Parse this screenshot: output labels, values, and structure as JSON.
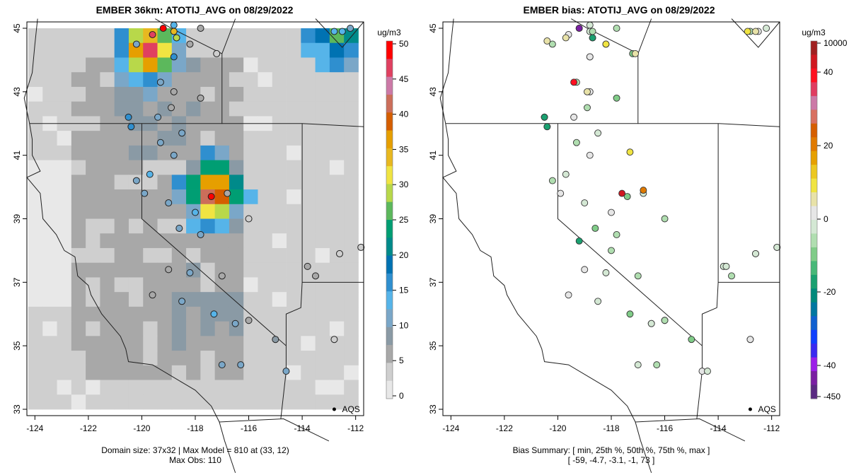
{
  "left_panel": {
    "title": "EMBER 36km: ATOTIJ_AVG on 08/29/2022",
    "caption_line1": "Domain size: 37x32 | Max Model = 810 at (33, 12)",
    "caption_line2": "Max Obs: 110",
    "marker_label": "AQS",
    "colorbar": {
      "unit": "ug/m3",
      "ticks": [
        "0",
        "5",
        "10",
        "15",
        "20",
        "25",
        "30",
        "35",
        "40",
        "45",
        "50"
      ],
      "stops": [
        "#e8e8e8",
        "#cfcfcf",
        "#a8a8a8",
        "#8a9aa5",
        "#7aa7c8",
        "#56b4e9",
        "#2f8fcf",
        "#0072b2",
        "#008a8a",
        "#009e73",
        "#5cb85c",
        "#b8d84a",
        "#f0e442",
        "#e8b820",
        "#e69f00",
        "#d55e00",
        "#cc6e5a",
        "#cc79a7",
        "#e04060",
        "#ff0000"
      ]
    }
  },
  "right_panel": {
    "title": "EMBER bias: ATOTIJ_AVG on 08/29/2022",
    "caption_line1": "Bias Summary: [ min, 25th %, 50th %, 75th %, max ]",
    "caption_line2": "[ -59,   -4.7,   -3.1,   -1,   73 ]",
    "marker_label": "AQS",
    "colorbar": {
      "unit": "ug/m3",
      "ticks": [
        "10000",
        "40",
        "20",
        "0",
        "-20",
        "-40",
        "-450"
      ],
      "stops": [
        "#5a2a82",
        "#7a1fa2",
        "#9b1fe8",
        "#3a2af0",
        "#1040ff",
        "#1060d0",
        "#0077a0",
        "#00897b",
        "#1aa070",
        "#48b878",
        "#80cc88",
        "#b0deb0",
        "#d4e8d4",
        "#e6e6e6",
        "#e8e2a8",
        "#f0e442",
        "#ecc820",
        "#e6a000",
        "#e07a00",
        "#d55e00",
        "#d87060",
        "#cc79a7",
        "#e03c60",
        "#ff1020",
        "#d01820",
        "#a02020"
      ]
    }
  },
  "map": {
    "x_ticks": [
      "-124",
      "-122",
      "-120",
      "-118",
      "-116",
      "-114",
      "-112"
    ],
    "y_ticks": [
      "33",
      "35",
      "37",
      "39",
      "41",
      "43",
      "45"
    ],
    "xlim": [
      -124.3,
      -111.7
    ],
    "ylim": [
      32.8,
      45.2
    ]
  },
  "chart_data": {
    "type": "heatmap",
    "title_left": "EMBER 36km: ATOTIJ_AVG on 08/29/2022",
    "title_right": "EMBER bias: ATOTIJ_AVG on 08/29/2022",
    "units": "ug/m3",
    "model_max": 810,
    "model_max_cell": [
      33,
      12
    ],
    "domain_size": "37x32",
    "obs_max": 110,
    "bias_summary": {
      "min": -59,
      "p25": -4.7,
      "p50": -3.1,
      "p75": -1,
      "max": 73
    },
    "hotspots": [
      {
        "lon": -119.8,
        "lat": 44.3,
        "value": 50
      },
      {
        "lon": -117.3,
        "lat": 39.8,
        "value": 50
      },
      {
        "lon": -112.6,
        "lat": 44.9,
        "value": 30
      }
    ],
    "obs_sites_left": [
      {
        "lon": -119.2,
        "lat": 45.0,
        "v": 50
      },
      {
        "lon": -118.8,
        "lat": 45.1,
        "v": 12
      },
      {
        "lon": -117.8,
        "lat": 45.0,
        "v": 4
      },
      {
        "lon": -119.6,
        "lat": 44.8,
        "v": 48
      },
      {
        "lon": -118.8,
        "lat": 44.9,
        "v": 35
      },
      {
        "lon": -118.7,
        "lat": 44.7,
        "v": 28
      },
      {
        "lon": -118.8,
        "lat": 44.1,
        "v": 16
      },
      {
        "lon": -120.2,
        "lat": 44.5,
        "v": 10
      },
      {
        "lon": -117.2,
        "lat": 44.2,
        "v": 3
      },
      {
        "lon": -118.2,
        "lat": 44.5,
        "v": 4
      },
      {
        "lon": -112.8,
        "lat": 44.9,
        "v": 14
      },
      {
        "lon": -112.5,
        "lat": 44.9,
        "v": 12
      },
      {
        "lon": -112.2,
        "lat": 45.0,
        "v": 10
      },
      {
        "lon": -119.3,
        "lat": 43.3,
        "v": 10
      },
      {
        "lon": -118.8,
        "lat": 43.0,
        "v": 6
      },
      {
        "lon": -120.5,
        "lat": 42.2,
        "v": 17
      },
      {
        "lon": -120.4,
        "lat": 41.9,
        "v": 16
      },
      {
        "lon": -119.4,
        "lat": 42.2,
        "v": 10
      },
      {
        "lon": -118.9,
        "lat": 42.5,
        "v": 6
      },
      {
        "lon": -117.8,
        "lat": 42.8,
        "v": 5
      },
      {
        "lon": -118.5,
        "lat": 41.7,
        "v": 10
      },
      {
        "lon": -119.3,
        "lat": 41.4,
        "v": 10
      },
      {
        "lon": -118.8,
        "lat": 41.0,
        "v": 10
      },
      {
        "lon": -119.7,
        "lat": 40.4,
        "v": 12
      },
      {
        "lon": -120.2,
        "lat": 40.2,
        "v": 10
      },
      {
        "lon": -119.9,
        "lat": 39.8,
        "v": 11
      },
      {
        "lon": -119.0,
        "lat": 39.5,
        "v": 10
      },
      {
        "lon": -118.6,
        "lat": 38.7,
        "v": 10
      },
      {
        "lon": -118.0,
        "lat": 39.2,
        "v": 12
      },
      {
        "lon": -117.8,
        "lat": 38.5,
        "v": 10
      },
      {
        "lon": -117.4,
        "lat": 39.7,
        "v": 50
      },
      {
        "lon": -116.8,
        "lat": 39.8,
        "v": 5
      },
      {
        "lon": -116.0,
        "lat": 39.0,
        "v": 2
      },
      {
        "lon": -119.0,
        "lat": 37.4,
        "v": 6
      },
      {
        "lon": -118.2,
        "lat": 37.3,
        "v": 10
      },
      {
        "lon": -117.0,
        "lat": 37.2,
        "v": 6
      },
      {
        "lon": -119.6,
        "lat": 36.6,
        "v": 6
      },
      {
        "lon": -118.5,
        "lat": 36.4,
        "v": 10
      },
      {
        "lon": -117.3,
        "lat": 36.0,
        "v": 12
      },
      {
        "lon": -116.5,
        "lat": 35.7,
        "v": 11
      },
      {
        "lon": -116.0,
        "lat": 35.8,
        "v": 4
      },
      {
        "lon": -115.0,
        "lat": 35.2,
        "v": 8
      },
      {
        "lon": -117.0,
        "lat": 34.4,
        "v": 10
      },
      {
        "lon": -116.3,
        "lat": 34.4,
        "v": 10
      },
      {
        "lon": -114.6,
        "lat": 34.2,
        "v": 10
      },
      {
        "lon": -113.8,
        "lat": 37.5,
        "v": 4
      },
      {
        "lon": -113.5,
        "lat": 37.2,
        "v": 4
      },
      {
        "lon": -112.6,
        "lat": 37.9,
        "v": 3
      },
      {
        "lon": -111.8,
        "lat": 38.1,
        "v": 3
      },
      {
        "lon": -112.8,
        "lat": 35.2,
        "v": 2
      }
    ],
    "obs_sites_right": [
      {
        "lon": -119.2,
        "lat": 45.0,
        "v": -40
      },
      {
        "lon": -118.7,
        "lat": 44.7,
        "v": -15
      },
      {
        "lon": -118.7,
        "lat": 44.9,
        "v": -5
      },
      {
        "lon": -119.7,
        "lat": 44.7,
        "v": 5
      },
      {
        "lon": -120.4,
        "lat": 44.6,
        "v": 8
      },
      {
        "lon": -118.2,
        "lat": 44.5,
        "v": 10
      },
      {
        "lon": -117.1,
        "lat": 44.2,
        "v": 3
      },
      {
        "lon": -118.8,
        "lat": 44.1,
        "v": 0
      },
      {
        "lon": -112.9,
        "lat": 44.9,
        "v": 12
      },
      {
        "lon": -112.6,
        "lat": 44.9,
        "v": 8
      },
      {
        "lon": -119.4,
        "lat": 43.3,
        "v": 40
      },
      {
        "lon": -118.9,
        "lat": 43.0,
        "v": 4
      },
      {
        "lon": -120.5,
        "lat": 42.2,
        "v": -15
      },
      {
        "lon": -120.4,
        "lat": 41.9,
        "v": -14
      },
      {
        "lon": -117.3,
        "lat": 41.1,
        "v": 12
      },
      {
        "lon": -117.6,
        "lat": 39.8,
        "v": 50
      },
      {
        "lon": -116.8,
        "lat": 39.9,
        "v": 25
      },
      {
        "lon": -119.2,
        "lat": 38.3,
        "v": -12
      },
      {
        "lon": -118.0,
        "lat": 38.0,
        "v": -5
      },
      {
        "lon": -113.7,
        "lat": 37.5,
        "v": -3
      },
      {
        "lon": -116.5,
        "lat": 35.7,
        "v": -4
      },
      {
        "lon": -116.0,
        "lat": 35.8,
        "v": -6
      },
      {
        "lon": -114.4,
        "lat": 34.2,
        "v": -4
      },
      {
        "lon": -112.8,
        "lat": 35.2,
        "v": 0
      },
      {
        "lon": -112.6,
        "lat": 37.9,
        "v": -2
      },
      {
        "lon": -111.8,
        "lat": 38.1,
        "v": -2
      }
    ]
  }
}
